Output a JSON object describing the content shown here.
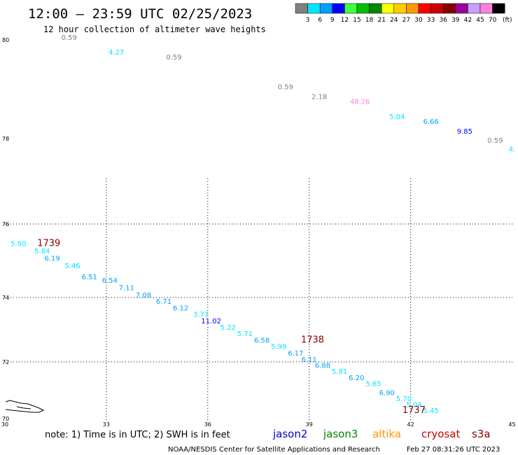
{
  "header": {
    "title": "12:00 – 23:59 UTC 02/25/2023",
    "subtitle": "12 hour collection of altimeter wave heights"
  },
  "legend": {
    "unit": "(ft)",
    "bins": [
      {
        "label": "3",
        "color": "#808080"
      },
      {
        "label": "6",
        "color": "#00e5ff"
      },
      {
        "label": "9",
        "color": "#00a0ff"
      },
      {
        "label": "12",
        "color": "#0000ff"
      },
      {
        "label": "15",
        "color": "#40ff40"
      },
      {
        "label": "18",
        "color": "#00c000"
      },
      {
        "label": "21",
        "color": "#008800"
      },
      {
        "label": "24",
        "color": "#ffff00"
      },
      {
        "label": "27",
        "color": "#ffcc00"
      },
      {
        "label": "30",
        "color": "#ff9900"
      },
      {
        "label": "33",
        "color": "#ff0000"
      },
      {
        "label": "36",
        "color": "#cc0000"
      },
      {
        "label": "39",
        "color": "#880000"
      },
      {
        "label": "42",
        "color": "#990099"
      },
      {
        "label": "45",
        "color": "#c8a0ff"
      },
      {
        "label": "70",
        "color": "#ff80e0"
      },
      {
        "label": "",
        "color": "#000000"
      }
    ]
  },
  "map": {
    "lon_ticks": [
      "30",
      "33",
      "36",
      "39",
      "42",
      "45"
    ],
    "lat_ticks": [
      "70",
      "72",
      "74",
      "76",
      "78",
      "80"
    ],
    "lon_range": [
      30,
      45
    ],
    "lat_range": [
      70,
      80
    ],
    "grid": "dotted"
  },
  "chart_data": {
    "type": "scatter",
    "observations": [
      {
        "lon": 31.9,
        "lat": 80.0,
        "swh": "0.59",
        "color": "#808080"
      },
      {
        "lon": 33.3,
        "lat": 79.7,
        "swh": "4.27",
        "color": "#00e5ff"
      },
      {
        "lon": 35.0,
        "lat": 79.6,
        "swh": "0.59",
        "color": "#808080"
      },
      {
        "lon": 38.3,
        "lat": 79.0,
        "swh": "0.59",
        "color": "#808080"
      },
      {
        "lon": 39.3,
        "lat": 78.8,
        "swh": "2.18",
        "color": "#808080"
      },
      {
        "lon": 40.5,
        "lat": 78.7,
        "swh": "48.26",
        "color": "#ff80e0"
      },
      {
        "lon": 41.6,
        "lat": 78.4,
        "swh": "5.04",
        "color": "#00e5ff"
      },
      {
        "lon": 42.6,
        "lat": 78.3,
        "swh": "6.66",
        "color": "#00a0ff"
      },
      {
        "lon": 43.6,
        "lat": 78.1,
        "swh": "9.85",
        "color": "#0000ff"
      },
      {
        "lon": 44.5,
        "lat": 77.9,
        "swh": "0.59",
        "color": "#808080"
      },
      {
        "lon": 45.0,
        "lat": 77.7,
        "swh": "4.",
        "color": "#00e5ff"
      },
      {
        "lon": 30.4,
        "lat": 75.4,
        "swh": "5.90",
        "color": "#00e5ff"
      },
      {
        "lon": 31.1,
        "lat": 75.2,
        "swh": "5.84",
        "color": "#00e5ff"
      },
      {
        "lon": 31.4,
        "lat": 75.0,
        "swh": "6.19",
        "color": "#00a0ff"
      },
      {
        "lon": 32.0,
        "lat": 74.8,
        "swh": "5.46",
        "color": "#00e5ff"
      },
      {
        "lon": 32.5,
        "lat": 74.5,
        "swh": "6.51",
        "color": "#00a0ff"
      },
      {
        "lon": 33.1,
        "lat": 74.4,
        "swh": "6.54",
        "color": "#00a0ff"
      },
      {
        "lon": 33.6,
        "lat": 74.2,
        "swh": "7.11",
        "color": "#00a0ff"
      },
      {
        "lon": 34.1,
        "lat": 74.0,
        "swh": "7.08",
        "color": "#00a0ff"
      },
      {
        "lon": 34.7,
        "lat": 73.8,
        "swh": "6.71",
        "color": "#00a0ff"
      },
      {
        "lon": 35.2,
        "lat": 73.6,
        "swh": "6.12",
        "color": "#00a0ff"
      },
      {
        "lon": 35.8,
        "lat": 73.4,
        "swh": "3.77",
        "color": "#00e5ff"
      },
      {
        "lon": 36.1,
        "lat": 73.2,
        "swh": "11.02",
        "color": "#0000ff"
      },
      {
        "lon": 36.6,
        "lat": 73.0,
        "swh": "5.22",
        "color": "#00e5ff"
      },
      {
        "lon": 37.1,
        "lat": 72.8,
        "swh": "5.71",
        "color": "#00e5ff"
      },
      {
        "lon": 37.6,
        "lat": 72.6,
        "swh": "6.58",
        "color": "#00a0ff"
      },
      {
        "lon": 38.1,
        "lat": 72.4,
        "swh": "5.99",
        "color": "#00e5ff"
      },
      {
        "lon": 38.6,
        "lat": 72.2,
        "swh": "6.17",
        "color": "#00a0ff"
      },
      {
        "lon": 39.0,
        "lat": 72.0,
        "swh": "6.11",
        "color": "#00a0ff"
      },
      {
        "lon": 39.4,
        "lat": 71.8,
        "swh": "6.88",
        "color": "#00a0ff"
      },
      {
        "lon": 39.9,
        "lat": 71.6,
        "swh": "5.81",
        "color": "#00e5ff"
      },
      {
        "lon": 40.4,
        "lat": 71.4,
        "swh": "6.20",
        "color": "#00a0ff"
      },
      {
        "lon": 40.9,
        "lat": 71.2,
        "swh": "5.65",
        "color": "#00e5ff"
      },
      {
        "lon": 41.3,
        "lat": 70.9,
        "swh": "6.90",
        "color": "#00a0ff"
      },
      {
        "lon": 41.8,
        "lat": 70.7,
        "swh": "5.70",
        "color": "#00e5ff"
      },
      {
        "lon": 42.1,
        "lat": 70.5,
        "swh": "5.04",
        "color": "#00e5ff"
      },
      {
        "lon": 42.6,
        "lat": 70.3,
        "swh": "5.45",
        "color": "#00e5ff"
      }
    ],
    "time_labels": [
      {
        "lon": 31.3,
        "lat": 75.4,
        "text": "1739",
        "color": "#880000"
      },
      {
        "lon": 39.1,
        "lat": 72.6,
        "text": "1738",
        "color": "#880000"
      },
      {
        "lon": 42.1,
        "lat": 70.3,
        "text": "1737",
        "color": "#880000"
      }
    ]
  },
  "footer": {
    "note": "note:  1) Time is in UTC;  2) SWH is in feet",
    "satellites": [
      {
        "name": "jason2",
        "color": "#0000cc"
      },
      {
        "name": "jason3",
        "color": "#008800"
      },
      {
        "name": "altika",
        "color": "#ff9900"
      },
      {
        "name": "cryosat",
        "color": "#cc0000"
      },
      {
        "name": "s3a",
        "color": "#880000"
      }
    ],
    "credit": "NOAA/NESDIS Center for Satellite Applications and Research",
    "generated": "Feb 27 08:31:26 UTC 2023"
  }
}
